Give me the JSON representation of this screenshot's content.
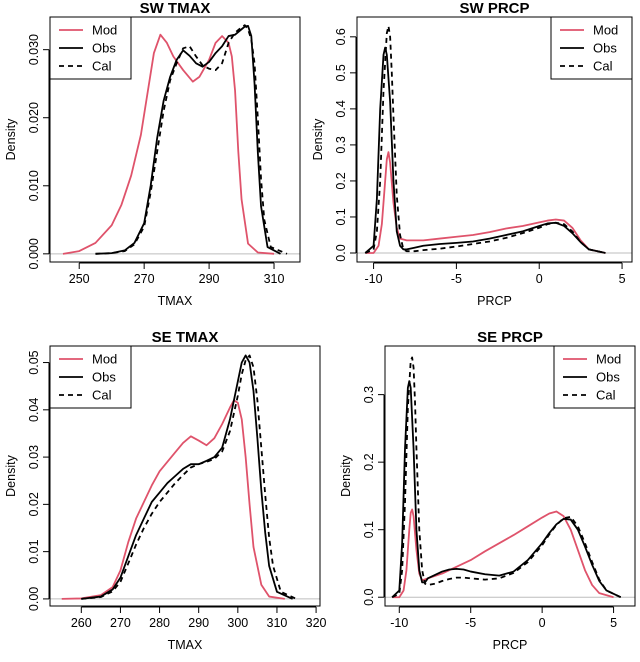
{
  "figure": {
    "ylabel": "Density"
  },
  "chart_data": [
    {
      "id": "sw_tmax",
      "type": "line",
      "title": "SW TMAX",
      "xlabel": "TMAX",
      "ylabel": "Density",
      "xlim": [
        241,
        318
      ],
      "ylim": [
        -0.0012,
        0.0348
      ],
      "xticks": [
        250,
        270,
        290,
        310
      ],
      "yticks": [
        0.0,
        0.01,
        0.02,
        0.03
      ],
      "ytick_labels": [
        "0.000",
        "0.010",
        "0.020",
        "0.030"
      ],
      "legend": {
        "position": "top-left",
        "entries": [
          "Mod",
          "Obs",
          "Cal"
        ]
      },
      "series": [
        {
          "name": "Mod",
          "color": "#DF536B",
          "dash": "solid",
          "x": [
            245,
            250,
            255,
            260,
            263,
            266,
            269,
            271,
            273,
            275,
            277,
            279,
            282,
            285,
            287,
            290,
            292,
            294,
            296,
            297,
            298,
            299,
            300,
            302,
            305,
            310
          ],
          "y": [
            0.0,
            0.0004,
            0.0016,
            0.0042,
            0.0072,
            0.0115,
            0.0175,
            0.0235,
            0.0295,
            0.0322,
            0.031,
            0.029,
            0.027,
            0.0253,
            0.026,
            0.0285,
            0.031,
            0.032,
            0.031,
            0.029,
            0.024,
            0.015,
            0.008,
            0.0015,
            0.0002,
            0.0
          ]
        },
        {
          "name": "Obs",
          "color": "#000000",
          "dash": "solid",
          "x": [
            255,
            260,
            264,
            267,
            270,
            272,
            274,
            276,
            278,
            280,
            282,
            284,
            286,
            288,
            290,
            292,
            294,
            296,
            298,
            300,
            301,
            302,
            303,
            304,
            305,
            306,
            308,
            312
          ],
          "y": [
            0.0,
            0.0001,
            0.0005,
            0.0016,
            0.0045,
            0.01,
            0.017,
            0.0225,
            0.026,
            0.0285,
            0.0299,
            0.0291,
            0.028,
            0.0275,
            0.0282,
            0.0295,
            0.0305,
            0.032,
            0.0322,
            0.033,
            0.0334,
            0.0335,
            0.032,
            0.025,
            0.015,
            0.007,
            0.001,
            0.0
          ]
        },
        {
          "name": "Cal",
          "color": "#000000",
          "dash": "5,4",
          "x": [
            255,
            260,
            264,
            267,
            270,
            272,
            274,
            276,
            278,
            280,
            282,
            284,
            286,
            288,
            290,
            292,
            294,
            296,
            298,
            300,
            301,
            302,
            303,
            304,
            305,
            306,
            307,
            309,
            314
          ],
          "y": [
            0.0,
            0.0001,
            0.0004,
            0.0014,
            0.004,
            0.009,
            0.015,
            0.021,
            0.0255,
            0.028,
            0.0302,
            0.0305,
            0.029,
            0.0277,
            0.0272,
            0.027,
            0.028,
            0.031,
            0.0325,
            0.0333,
            0.0336,
            0.033,
            0.0315,
            0.028,
            0.02,
            0.011,
            0.005,
            0.001,
            0.0
          ]
        }
      ]
    },
    {
      "id": "sw_prcp",
      "type": "line",
      "title": "SW PRCP",
      "xlabel": "PRCP",
      "ylabel": "Density",
      "xlim": [
        -11,
        5.6
      ],
      "ylim": [
        -0.025,
        0.655
      ],
      "xticks": [
        -10,
        -5,
        0,
        5
      ],
      "yticks": [
        0.0,
        0.1,
        0.2,
        0.3,
        0.4,
        0.5,
        0.6
      ],
      "ytick_labels": [
        "0.0",
        "0.1",
        "0.2",
        "0.3",
        "0.4",
        "0.5",
        "0.6"
      ],
      "legend": {
        "position": "top-right",
        "entries": [
          "Mod",
          "Obs",
          "Cal"
        ]
      },
      "series": [
        {
          "name": "Mod",
          "color": "#DF536B",
          "dash": "solid",
          "x": [
            -10.5,
            -10,
            -9.7,
            -9.5,
            -9.3,
            -9.2,
            -9.1,
            -9.0,
            -8.8,
            -8.6,
            -8.4,
            -8.0,
            -7.0,
            -6.0,
            -5.0,
            -4.0,
            -3.0,
            -2.0,
            -1.0,
            0.0,
            0.5,
            1.0,
            1.5,
            2.0,
            2.5,
            3.0,
            4.0
          ],
          "y": [
            0.0,
            0.0,
            0.02,
            0.08,
            0.2,
            0.26,
            0.28,
            0.25,
            0.14,
            0.07,
            0.04,
            0.035,
            0.035,
            0.04,
            0.045,
            0.05,
            0.058,
            0.068,
            0.075,
            0.085,
            0.09,
            0.093,
            0.09,
            0.07,
            0.035,
            0.01,
            0.0
          ]
        },
        {
          "name": "Obs",
          "color": "#000000",
          "dash": "solid",
          "x": [
            -10.5,
            -10.0,
            -9.8,
            -9.6,
            -9.4,
            -9.3,
            -9.2,
            -9.0,
            -8.8,
            -8.6,
            -8.4,
            -8.2,
            -8.0,
            -7.5,
            -7.0,
            -6.0,
            -5.0,
            -4.0,
            -3.0,
            -2.0,
            -1.0,
            0.0,
            0.5,
            1.0,
            1.5,
            2.0,
            2.5,
            3.0,
            4.0
          ],
          "y": [
            0.0,
            0.02,
            0.15,
            0.4,
            0.55,
            0.57,
            0.55,
            0.42,
            0.2,
            0.06,
            0.02,
            0.01,
            0.01,
            0.015,
            0.02,
            0.025,
            0.028,
            0.032,
            0.04,
            0.05,
            0.06,
            0.075,
            0.082,
            0.084,
            0.075,
            0.055,
            0.03,
            0.01,
            0.0
          ]
        },
        {
          "name": "Cal",
          "color": "#000000",
          "dash": "5,4",
          "x": [
            -10.5,
            -10.0,
            -9.8,
            -9.6,
            -9.4,
            -9.2,
            -9.1,
            -9.0,
            -8.9,
            -8.8,
            -8.6,
            -8.4,
            -8.2,
            -8.0,
            -7.5,
            -7.0,
            -6.0,
            -5.0,
            -4.0,
            -3.0,
            -2.0,
            -1.0,
            0.0,
            0.5,
            1.0,
            1.5,
            2.0,
            2.5,
            3.0,
            4.0
          ],
          "y": [
            0.0,
            0.01,
            0.06,
            0.2,
            0.45,
            0.61,
            0.63,
            0.6,
            0.5,
            0.38,
            0.16,
            0.05,
            0.01,
            0.005,
            0.005,
            0.008,
            0.012,
            0.018,
            0.025,
            0.032,
            0.042,
            0.055,
            0.07,
            0.08,
            0.084,
            0.08,
            0.06,
            0.03,
            0.01,
            0.0
          ]
        }
      ]
    },
    {
      "id": "se_tmax",
      "type": "line",
      "title": "SE TMAX",
      "xlabel": "TMAX",
      "ylabel": "Density",
      "xlim": [
        252,
        321
      ],
      "ylim": [
        -0.0015,
        0.0535
      ],
      "xticks": [
        260,
        270,
        280,
        290,
        300,
        310,
        320
      ],
      "yticks": [
        0.0,
        0.01,
        0.02,
        0.03,
        0.04,
        0.05
      ],
      "ytick_labels": [
        "0.00",
        "0.01",
        "0.02",
        "0.03",
        "0.04",
        "0.05"
      ],
      "legend": {
        "position": "top-left",
        "entries": [
          "Mod",
          "Obs",
          "Cal"
        ]
      },
      "series": [
        {
          "name": "Mod",
          "color": "#DF536B",
          "dash": "solid",
          "x": [
            255,
            260,
            265,
            268,
            270,
            272,
            274,
            276,
            278,
            280,
            282,
            284,
            286,
            288,
            290,
            292,
            294,
            296,
            298,
            299,
            300,
            301,
            302,
            303,
            304,
            306,
            308,
            312
          ],
          "y": [
            0.0,
            0.0001,
            0.0008,
            0.0025,
            0.006,
            0.012,
            0.017,
            0.0205,
            0.024,
            0.027,
            0.029,
            0.031,
            0.033,
            0.0344,
            0.0335,
            0.0325,
            0.034,
            0.037,
            0.0405,
            0.042,
            0.0415,
            0.038,
            0.03,
            0.02,
            0.011,
            0.003,
            0.0005,
            0.0
          ]
        },
        {
          "name": "Obs",
          "color": "#000000",
          "dash": "solid",
          "x": [
            260,
            265,
            268,
            270,
            272,
            274,
            276,
            278,
            280,
            282,
            284,
            286,
            288,
            290,
            292,
            294,
            296,
            298,
            300,
            301,
            302,
            303,
            304,
            305,
            306,
            307,
            308,
            310,
            314
          ],
          "y": [
            0.0,
            0.0005,
            0.002,
            0.0045,
            0.009,
            0.0135,
            0.017,
            0.0205,
            0.0225,
            0.0245,
            0.026,
            0.0275,
            0.0285,
            0.0285,
            0.0292,
            0.03,
            0.032,
            0.038,
            0.046,
            0.05,
            0.0515,
            0.05,
            0.044,
            0.034,
            0.023,
            0.014,
            0.007,
            0.0015,
            0.0
          ]
        },
        {
          "name": "Cal",
          "color": "#000000",
          "dash": "5,4",
          "x": [
            260,
            265,
            268,
            270,
            272,
            274,
            276,
            278,
            280,
            282,
            284,
            286,
            288,
            290,
            292,
            294,
            296,
            298,
            300,
            301,
            302,
            303,
            304,
            305,
            306,
            307,
            308,
            309,
            311,
            315
          ],
          "y": [
            0.0,
            0.0004,
            0.0016,
            0.0036,
            0.0075,
            0.0115,
            0.015,
            0.018,
            0.0205,
            0.0225,
            0.0245,
            0.0262,
            0.0278,
            0.0285,
            0.029,
            0.0296,
            0.0312,
            0.0355,
            0.043,
            0.0475,
            0.0505,
            0.0515,
            0.049,
            0.042,
            0.032,
            0.022,
            0.013,
            0.007,
            0.0015,
            0.0
          ]
        }
      ]
    },
    {
      "id": "se_prcp",
      "type": "line",
      "title": "SE PRCP",
      "xlabel": "PRCP",
      "ylabel": "Density",
      "xlim": [
        -11.0,
        6.5
      ],
      "ylim": [
        -0.013,
        0.372
      ],
      "xticks": [
        -10,
        -5,
        0,
        5
      ],
      "yticks": [
        0.0,
        0.1,
        0.2,
        0.3
      ],
      "ytick_labels": [
        "0.0",
        "0.1",
        "0.2",
        "0.3"
      ],
      "legend": {
        "position": "top-right",
        "entries": [
          "Mod",
          "Obs",
          "Cal"
        ]
      },
      "series": [
        {
          "name": "Mod",
          "color": "#DF536B",
          "dash": "solid",
          "x": [
            -10.5,
            -10.0,
            -9.7,
            -9.5,
            -9.3,
            -9.2,
            -9.1,
            -9.0,
            -8.8,
            -8.6,
            -8.4,
            -8.0,
            -7.0,
            -6.0,
            -5.0,
            -4.0,
            -3.0,
            -2.0,
            -1.0,
            0.0,
            0.5,
            1.0,
            1.5,
            2.0,
            2.5,
            3.0,
            3.5,
            4.0,
            5.0
          ],
          "y": [
            0.0,
            0.0,
            0.01,
            0.04,
            0.1,
            0.125,
            0.13,
            0.12,
            0.07,
            0.035,
            0.025,
            0.028,
            0.035,
            0.045,
            0.055,
            0.068,
            0.08,
            0.092,
            0.105,
            0.118,
            0.124,
            0.127,
            0.12,
            0.1,
            0.07,
            0.04,
            0.018,
            0.006,
            0.0
          ]
        },
        {
          "name": "Obs",
          "color": "#000000",
          "dash": "solid",
          "x": [
            -10.5,
            -10.0,
            -9.8,
            -9.6,
            -9.4,
            -9.3,
            -9.2,
            -9.0,
            -8.8,
            -8.6,
            -8.4,
            -8.2,
            -8.0,
            -7.5,
            -7.0,
            -6.5,
            -6.0,
            -5.5,
            -5.0,
            -4.0,
            -3.0,
            -2.0,
            -1.0,
            0.0,
            0.5,
            1.0,
            1.5,
            2.0,
            2.5,
            3.0,
            3.5,
            4.0,
            4.5,
            5.5
          ],
          "y": [
            0.0,
            0.01,
            0.08,
            0.22,
            0.31,
            0.32,
            0.31,
            0.22,
            0.1,
            0.04,
            0.022,
            0.022,
            0.028,
            0.033,
            0.038,
            0.041,
            0.042,
            0.041,
            0.038,
            0.034,
            0.032,
            0.038,
            0.055,
            0.08,
            0.095,
            0.108,
            0.116,
            0.115,
            0.1,
            0.075,
            0.048,
            0.024,
            0.01,
            0.0
          ]
        },
        {
          "name": "Cal",
          "color": "#000000",
          "dash": "5,4",
          "x": [
            -10.5,
            -10.0,
            -9.8,
            -9.6,
            -9.4,
            -9.2,
            -9.1,
            -9.0,
            -8.9,
            -8.8,
            -8.6,
            -8.4,
            -8.2,
            -8.0,
            -7.5,
            -7.0,
            -6.5,
            -6.0,
            -5.5,
            -5.0,
            -4.0,
            -3.0,
            -2.0,
            -1.0,
            0.0,
            0.5,
            1.0,
            1.5,
            2.0,
            2.5,
            3.0,
            3.5,
            4.0,
            4.5,
            5.5
          ],
          "y": [
            0.0,
            0.005,
            0.04,
            0.14,
            0.28,
            0.35,
            0.355,
            0.34,
            0.29,
            0.22,
            0.1,
            0.04,
            0.02,
            0.018,
            0.02,
            0.024,
            0.027,
            0.029,
            0.029,
            0.028,
            0.026,
            0.028,
            0.036,
            0.052,
            0.077,
            0.093,
            0.107,
            0.117,
            0.119,
            0.105,
            0.08,
            0.052,
            0.026,
            0.01,
            0.0
          ]
        }
      ]
    }
  ]
}
